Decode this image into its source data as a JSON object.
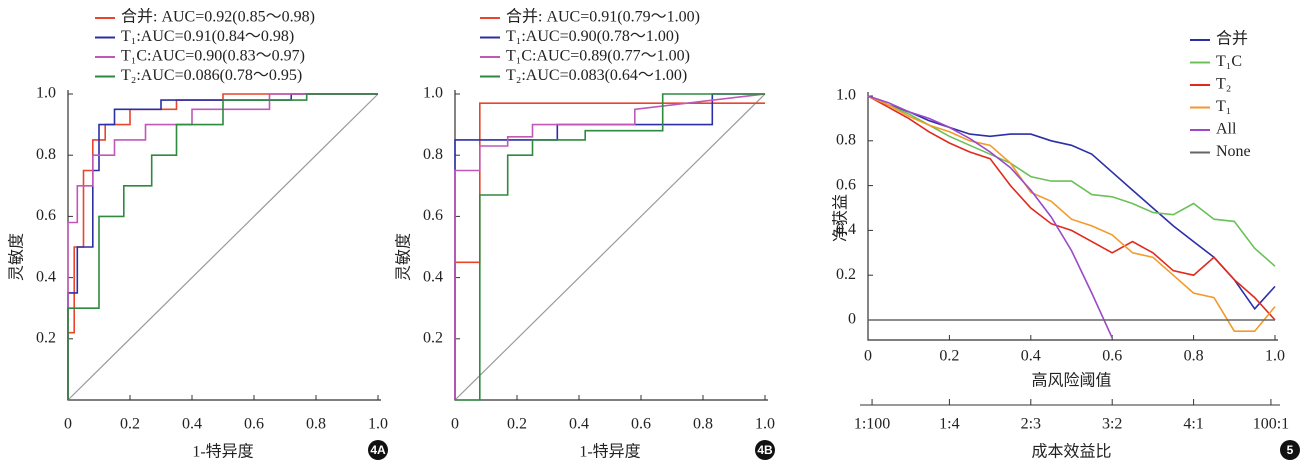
{
  "chart_data": [
    {
      "type": "line",
      "panel_label": "4A",
      "xlabel": "1-特异度",
      "ylabel": "灵敏度",
      "xlim": [
        0,
        1
      ],
      "ylim": [
        0,
        1
      ],
      "xticks": [
        0,
        0.2,
        0.4,
        0.6,
        0.8,
        {
          "value": 1,
          "label": "1.0"
        }
      ],
      "yticks": [
        0.2,
        0.4,
        0.6,
        0.8,
        {
          "value": 1,
          "label": "1.0"
        }
      ],
      "grid": false,
      "legend": "top",
      "series": [
        {
          "name": "合并: AUC=0.92(0.85～0.98)",
          "color": "#e8452a",
          "x": [
            0,
            0,
            0.02,
            0.02,
            0.05,
            0.05,
            0.08,
            0.08,
            0.12,
            0.12,
            0.2,
            0.2,
            0.35,
            0.35,
            0.5,
            0.5,
            1
          ],
          "values": [
            0,
            0.22,
            0.22,
            0.5,
            0.5,
            0.75,
            0.75,
            0.85,
            0.85,
            0.9,
            0.9,
            0.95,
            0.95,
            0.98,
            0.98,
            1,
            1
          ]
        },
        {
          "name": "T₁:AUC=0.91(0.84～0.98)",
          "color": "#2b2fa8",
          "x": [
            0,
            0,
            0.03,
            0.03,
            0.08,
            0.08,
            0.1,
            0.1,
            0.15,
            0.15,
            0.3,
            0.3,
            0.72,
            0.72,
            1
          ],
          "values": [
            0,
            0.35,
            0.35,
            0.5,
            0.5,
            0.75,
            0.75,
            0.9,
            0.9,
            0.95,
            0.95,
            0.98,
            0.98,
            1,
            1
          ]
        },
        {
          "name": "T₁C:AUC=0.90(0.83～0.97)",
          "color": "#c058b8",
          "x": [
            0,
            0,
            0.03,
            0.03,
            0.08,
            0.08,
            0.15,
            0.15,
            0.25,
            0.25,
            0.4,
            0.4,
            0.65,
            0.65,
            1
          ],
          "values": [
            0,
            0.58,
            0.58,
            0.7,
            0.7,
            0.8,
            0.8,
            0.85,
            0.85,
            0.9,
            0.9,
            0.95,
            0.95,
            1,
            1
          ]
        },
        {
          "name": "T₂:AUC=0.086(0.78～0.95)",
          "color": "#2e8a3e",
          "x": [
            0,
            0,
            0.1,
            0.1,
            0.18,
            0.18,
            0.27,
            0.27,
            0.35,
            0.35,
            0.5,
            0.5,
            0.77,
            0.77,
            1
          ],
          "values": [
            0,
            0.3,
            0.3,
            0.6,
            0.6,
            0.7,
            0.7,
            0.8,
            0.8,
            0.9,
            0.9,
            0.98,
            0.98,
            1,
            1
          ]
        }
      ]
    },
    {
      "type": "line",
      "panel_label": "4B",
      "xlabel": "1-特异度",
      "ylabel": "灵敏度",
      "xlim": [
        0,
        1
      ],
      "ylim": [
        0,
        1
      ],
      "xticks": [
        0,
        0.2,
        0.4,
        0.6,
        0.8,
        {
          "value": 1,
          "label": "1.0"
        }
      ],
      "yticks": [
        0.2,
        0.4,
        0.6,
        0.8,
        {
          "value": 1,
          "label": "1.0"
        }
      ],
      "grid": false,
      "legend": "top",
      "series": [
        {
          "name": "合并: AUC=0.91(0.79～1.00)",
          "color": "#e8452a",
          "x": [
            0,
            0,
            0.08,
            0.08,
            1
          ],
          "values": [
            0,
            0.45,
            0.45,
            0.97,
            0.97
          ]
        },
        {
          "name": "T₁:AUC=0.90(0.78～1.00)",
          "color": "#2b2fa8",
          "x": [
            0,
            0,
            0.33,
            0.33,
            0.83,
            0.83,
            1
          ],
          "values": [
            0,
            0.85,
            0.85,
            0.9,
            0.9,
            1,
            1
          ]
        },
        {
          "name": "T₁C:AUC=0.89(0.77～1.00)",
          "color": "#c058b8",
          "x": [
            0,
            0,
            0.08,
            0.08,
            0.17,
            0.17,
            0.25,
            0.25,
            0.58,
            0.58,
            1
          ],
          "values": [
            0,
            0.75,
            0.75,
            0.83,
            0.83,
            0.86,
            0.86,
            0.9,
            0.9,
            0.95,
            1
          ]
        },
        {
          "name": "T₂:AUC=0.083(0.64～1.00)",
          "color": "#2e8a3e",
          "x": [
            0,
            0.08,
            0.08,
            0.17,
            0.17,
            0.25,
            0.25,
            0.42,
            0.42,
            0.67,
            0.67,
            1
          ],
          "values": [
            0,
            0,
            0.67,
            0.67,
            0.8,
            0.8,
            0.85,
            0.85,
            0.88,
            0.88,
            1,
            1
          ]
        }
      ]
    },
    {
      "type": "line",
      "panel_label": "5",
      "xlabel": "高风险阈值",
      "x2label": "成本效益比",
      "ylabel": "净获益",
      "xlim": [
        0,
        1
      ],
      "ylim": [
        0,
        1
      ],
      "xticks": [
        0,
        0.2,
        0.4,
        0.6,
        0.8,
        {
          "value": 1,
          "label": "1.0"
        }
      ],
      "yticks": [
        0,
        0.2,
        0.4,
        0.6,
        0.8,
        {
          "value": 1,
          "label": "1.0"
        }
      ],
      "x2ticks": [
        {
          "value": 0.01,
          "label": "1:100"
        },
        {
          "value": 0.2,
          "label": "1:4"
        },
        {
          "value": 0.4,
          "label": "2:3"
        },
        {
          "value": 0.6,
          "label": "3:2"
        },
        {
          "value": 0.8,
          "label": "4:1"
        },
        {
          "value": 0.99,
          "label": "100:1"
        }
      ],
      "grid": false,
      "legend": "upper right",
      "x": [
        0,
        0.05,
        0.1,
        0.15,
        0.2,
        0.25,
        0.3,
        0.35,
        0.4,
        0.45,
        0.5,
        0.55,
        0.6,
        0.65,
        0.7,
        0.75,
        0.8,
        0.85,
        0.9,
        0.95,
        1
      ],
      "series": [
        {
          "name": "合并",
          "color": "#2b2fa8",
          "values": [
            1,
            0.96,
            0.93,
            0.89,
            0.86,
            0.83,
            0.82,
            0.83,
            0.83,
            0.8,
            0.78,
            0.74,
            0.66,
            0.58,
            0.5,
            0.42,
            0.35,
            0.28,
            0.18,
            0.05,
            0.15
          ]
        },
        {
          "name": "T₁C",
          "color": "#6cc05a",
          "values": [
            1,
            0.96,
            0.92,
            0.87,
            0.82,
            0.78,
            0.74,
            0.7,
            0.64,
            0.62,
            0.62,
            0.56,
            0.55,
            0.52,
            0.48,
            0.47,
            0.52,
            0.45,
            0.44,
            0.32,
            0.24
          ]
        },
        {
          "name": "T₂",
          "color": "#e02a1e",
          "values": [
            1,
            0.95,
            0.9,
            0.84,
            0.79,
            0.75,
            0.72,
            0.6,
            0.5,
            0.43,
            0.4,
            0.35,
            0.3,
            0.35,
            0.3,
            0.22,
            0.2,
            0.28,
            0.18,
            0.1,
            0
          ]
        },
        {
          "name": "T₁",
          "color": "#f39a2a",
          "values": [
            1,
            0.96,
            0.91,
            0.87,
            0.84,
            0.8,
            0.78,
            0.7,
            0.57,
            0.53,
            0.45,
            0.42,
            0.38,
            0.3,
            0.28,
            0.2,
            0.12,
            0.1,
            -0.05,
            -0.05,
            0.06
          ]
        },
        {
          "name": "All",
          "color": "#9a4ac8",
          "values": [
            1,
            0.97,
            0.93,
            0.9,
            0.86,
            0.81,
            0.75,
            0.68,
            0.58,
            0.46,
            0.31,
            0.12,
            -0.08,
            null,
            null,
            null,
            null,
            null,
            null,
            null,
            null
          ]
        },
        {
          "name": "None",
          "color": "#666666",
          "values": [
            0,
            0,
            0,
            0,
            0,
            0,
            0,
            0,
            0,
            0,
            0,
            0,
            0,
            0,
            0,
            0,
            0,
            0,
            0,
            0,
            0
          ]
        }
      ]
    }
  ]
}
